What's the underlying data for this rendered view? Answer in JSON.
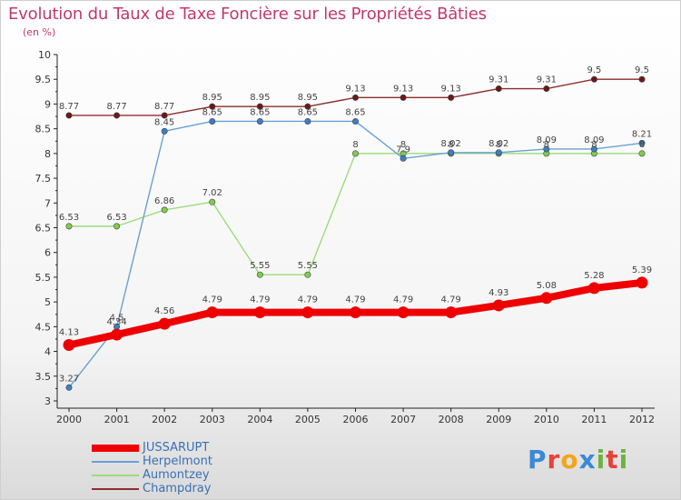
{
  "header": {
    "title": "Evolution du Taux de Taxe Foncière sur les Propriétés Bâties",
    "subtitle": "(en %)"
  },
  "brand": {
    "letters": [
      {
        "ch": "P",
        "color": "#3b88d6"
      },
      {
        "ch": "r",
        "color": "#e5423a"
      },
      {
        "ch": "o",
        "color": "#f2a51b"
      },
      {
        "ch": "x",
        "color": "#3b88d6"
      },
      {
        "ch": "i",
        "color": "#6cb33f"
      },
      {
        "ch": "t",
        "color": "#e5423a"
      },
      {
        "ch": "i",
        "color": "#6cb33f"
      }
    ]
  },
  "chart_data": {
    "type": "line",
    "title": "Evolution du Taux de Taxe Foncière sur les Propriétés Bâties",
    "subtitle": "(en %)",
    "x": [
      "2000",
      "2001",
      "2002",
      "2003",
      "2004",
      "2005",
      "2006",
      "2007",
      "2008",
      "2009",
      "2010",
      "2011",
      "2012"
    ],
    "ylim": [
      3,
      10
    ],
    "yticks": [
      "3",
      "3.5",
      "4",
      "4.5",
      "5",
      "5.5",
      "6",
      "6.5",
      "7",
      "7.5",
      "8",
      "8.5",
      "9",
      "9.5",
      "10"
    ],
    "series": [
      {
        "name": "JUSSARUPT",
        "color": "#ee0000",
        "pointColor": "#ee0000",
        "width": 8,
        "values": [
          4.13,
          4.34,
          4.56,
          4.79,
          4.79,
          4.79,
          4.79,
          4.79,
          4.79,
          4.93,
          5.08,
          5.28,
          5.39
        ],
        "labels": [
          "4.13",
          "4.34",
          "4.56",
          "4.79",
          "4.79",
          "4.79",
          "4.79",
          "4.79",
          "4.79",
          "4.93",
          "5.08",
          "5.28",
          "5.39"
        ]
      },
      {
        "name": "Herpelmont",
        "color": "#6aa0d4",
        "pointColor": "#3b7fc4",
        "width": 1.4,
        "values": [
          3.27,
          4.5,
          8.45,
          8.65,
          8.65,
          8.65,
          8.65,
          7.9,
          8.02,
          8.02,
          8.09,
          8.09,
          8.21
        ],
        "labels": [
          "3.27",
          "4.5",
          "8.45",
          "8.65",
          "8.65",
          "8.65",
          "8.65",
          "7.9",
          "8.02",
          "8.02",
          "8.09",
          "8.09",
          "8.21"
        ]
      },
      {
        "name": "Aumontzey",
        "color": "#9bdc7a",
        "pointColor": "#7fcc4f",
        "width": 1.4,
        "values": [
          6.53,
          6.53,
          6.86,
          7.02,
          5.55,
          5.55,
          8,
          8,
          8,
          8,
          8,
          8,
          8
        ],
        "labels": [
          "6.53",
          "6.53",
          "6.86",
          "7.02",
          "5.55",
          "5.55",
          "8",
          "8",
          "8",
          "8",
          "8",
          "8",
          "8"
        ]
      },
      {
        "name": "Champdray",
        "color": "#8b2e2e",
        "pointColor": "#6b1818",
        "width": 1.4,
        "values": [
          8.77,
          8.77,
          8.77,
          8.95,
          8.95,
          8.95,
          9.13,
          9.13,
          9.13,
          9.31,
          9.31,
          9.5,
          9.5
        ],
        "labels": [
          "8.77",
          "8.77",
          "8.77",
          "8.95",
          "8.95",
          "8.95",
          "9.13",
          "9.13",
          "9.13",
          "9.31",
          "9.31",
          "9.5",
          "9.5"
        ]
      }
    ],
    "legend": "bottom-left",
    "grid": false
  }
}
